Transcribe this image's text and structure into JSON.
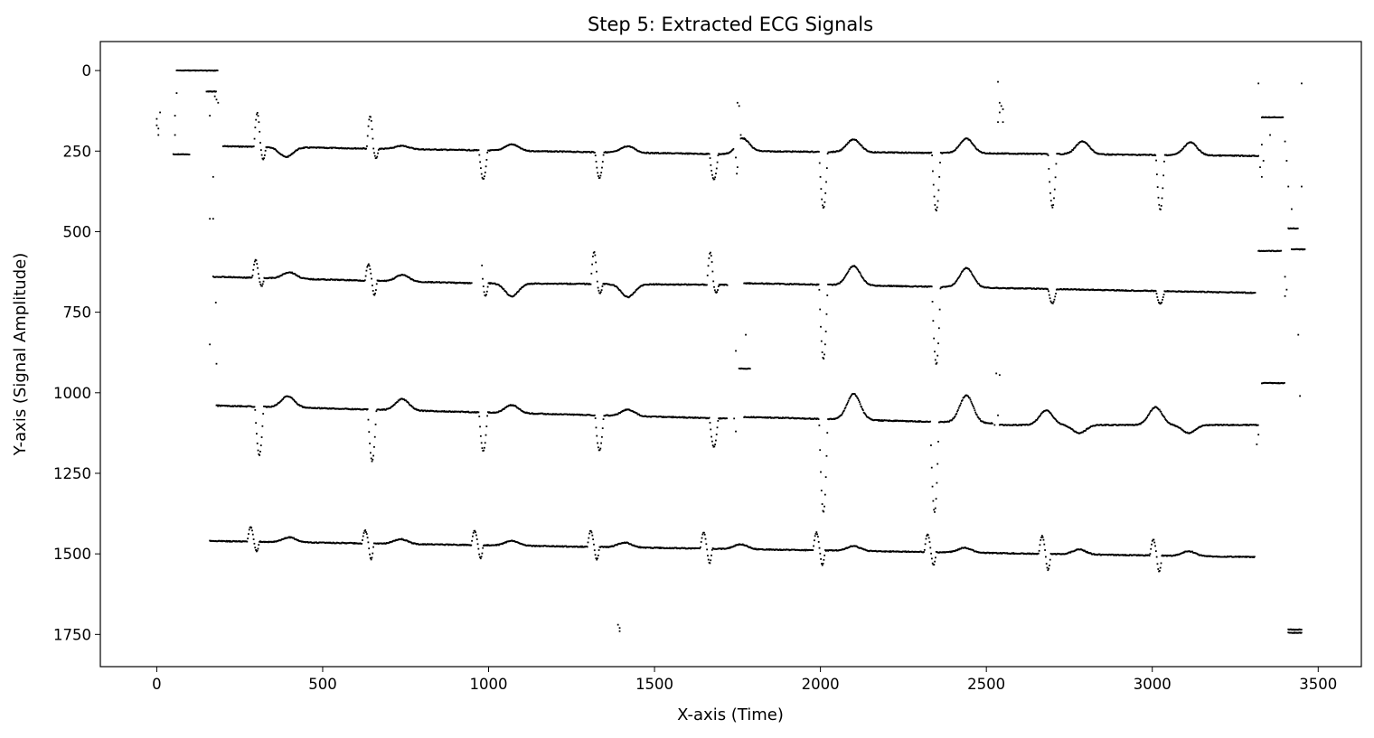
{
  "chart_data": {
    "type": "scatter",
    "title": "Step 5: Extracted ECG Signals",
    "xlabel": "X-axis (Time)",
    "ylabel": "Y-axis (Signal Amplitude)",
    "xlim": [
      -170,
      3630
    ],
    "ylim": [
      -90,
      1850
    ],
    "y_inverted": true,
    "grid": false,
    "marker_color": "#000000",
    "xticks": [
      0,
      500,
      1000,
      1500,
      2000,
      2500,
      3000,
      3500
    ],
    "yticks": [
      0,
      250,
      500,
      750,
      1000,
      1250,
      1500,
      1750
    ],
    "series": [
      {
        "baseline": 235,
        "x_start": 200,
        "x_end": 3320,
        "segments": [
          [
            200,
            1740,
            235,
            260
          ],
          [
            1760,
            3320,
            250,
            265
          ]
        ],
        "beats": [
          {
            "x": 305,
            "type": "qr",
            "up": -105,
            "down": 40
          },
          {
            "x": 390,
            "type": "t",
            "amp": 30
          },
          {
            "x": 645,
            "type": "qr",
            "up": -100,
            "down": 30
          },
          {
            "x": 740,
            "type": "t",
            "amp": -10
          },
          {
            "x": 975,
            "type": "qsr",
            "down": 90
          },
          {
            "x": 1070,
            "type": "t",
            "amp": -20
          },
          {
            "x": 1325,
            "type": "qsr",
            "down": 80
          },
          {
            "x": 1420,
            "type": "t",
            "amp": -20
          },
          {
            "x": 1670,
            "type": "qsr",
            "down": 80
          },
          {
            "x": 1765,
            "type": "t",
            "amp": -40
          },
          {
            "x": 2000,
            "type": "qsr",
            "down": 175
          },
          {
            "x": 2100,
            "type": "t",
            "amp": -40
          },
          {
            "x": 2340,
            "type": "qsr",
            "down": 180
          },
          {
            "x": 2440,
            "type": "t",
            "amp": -45
          },
          {
            "x": 2690,
            "type": "qsr",
            "down": 165
          },
          {
            "x": 2790,
            "type": "t",
            "amp": -40
          },
          {
            "x": 3015,
            "type": "qsr",
            "down": 170
          },
          {
            "x": 3115,
            "type": "t",
            "amp": -40
          }
        ]
      },
      {
        "baseline": 640,
        "x_start": 170,
        "x_end": 3310,
        "segments": [
          [
            170,
            950,
            640,
            660
          ],
          [
            980,
            1720,
            660,
            665
          ],
          [
            1770,
            3310,
            660,
            690
          ]
        ],
        "beats": [
          {
            "x": 300,
            "type": "qr",
            "up": -55,
            "down": 25
          },
          {
            "x": 400,
            "type": "t",
            "amp": -20
          },
          {
            "x": 640,
            "type": "qr",
            "up": -50,
            "down": 45
          },
          {
            "x": 740,
            "type": "t",
            "amp": -20
          },
          {
            "x": 975,
            "type": "qr",
            "up": -120,
            "down": 40
          },
          {
            "x": 1070,
            "type": "t",
            "amp": 40
          },
          {
            "x": 1320,
            "type": "qr",
            "up": -100,
            "down": 30
          },
          {
            "x": 1420,
            "type": "t",
            "amp": 40
          },
          {
            "x": 1670,
            "type": "qr",
            "up": -100,
            "down": 25
          },
          {
            "x": 2000,
            "type": "qsr",
            "down": 230
          },
          {
            "x": 2100,
            "type": "t",
            "amp": -60
          },
          {
            "x": 2340,
            "type": "qsr",
            "down": 240
          },
          {
            "x": 2440,
            "type": "t",
            "amp": -60
          },
          {
            "x": 2690,
            "type": "qsr",
            "down": 45
          },
          {
            "x": 3015,
            "type": "qsr",
            "down": 40
          }
        ]
      },
      {
        "baseline": 1040,
        "x_start": 180,
        "x_end": 3320,
        "segments": [
          [
            180,
            1720,
            1040,
            1080
          ],
          [
            1770,
            2520,
            1075,
            1095
          ],
          [
            2540,
            3320,
            1100,
            1100
          ]
        ],
        "beats": [
          {
            "x": 300,
            "type": "qsr",
            "down": 150
          },
          {
            "x": 395,
            "type": "t",
            "amp": -35
          },
          {
            "x": 640,
            "type": "qsr",
            "down": 160
          },
          {
            "x": 740,
            "type": "t",
            "amp": -35
          },
          {
            "x": 975,
            "type": "qsr",
            "down": 120
          },
          {
            "x": 1070,
            "type": "t",
            "amp": -25
          },
          {
            "x": 1325,
            "type": "qsr",
            "down": 110
          },
          {
            "x": 1420,
            "type": "t",
            "amp": -20
          },
          {
            "x": 1670,
            "type": "qsr",
            "down": 90
          },
          {
            "x": 2000,
            "type": "qsr",
            "down": 290
          },
          {
            "x": 2100,
            "type": "t",
            "amp": -80
          },
          {
            "x": 2335,
            "type": "qsr",
            "down": 280
          },
          {
            "x": 2440,
            "type": "t",
            "amp": -85
          },
          {
            "x": 2680,
            "type": "t",
            "amp": -45
          },
          {
            "x": 2780,
            "type": "t",
            "amp": 25
          },
          {
            "x": 3010,
            "type": "t",
            "amp": -55
          },
          {
            "x": 3110,
            "type": "t",
            "amp": 25
          }
        ]
      },
      {
        "baseline": 1460,
        "x_start": 160,
        "x_end": 3310,
        "segments": [
          [
            160,
            3310,
            1460,
            1510
          ]
        ],
        "beats": [
          {
            "x": 285,
            "type": "qr",
            "up": -45,
            "down": 30
          },
          {
            "x": 400,
            "type": "t",
            "amp": -15
          },
          {
            "x": 630,
            "type": "qr",
            "up": -40,
            "down": 50
          },
          {
            "x": 735,
            "type": "t",
            "amp": -15
          },
          {
            "x": 960,
            "type": "qr",
            "up": -45,
            "down": 40
          },
          {
            "x": 1070,
            "type": "t",
            "amp": -15
          },
          {
            "x": 1310,
            "type": "qr",
            "up": -50,
            "down": 40
          },
          {
            "x": 1410,
            "type": "t",
            "amp": -15
          },
          {
            "x": 1650,
            "type": "qr",
            "up": -50,
            "down": 45
          },
          {
            "x": 1760,
            "type": "t",
            "amp": -15
          },
          {
            "x": 1990,
            "type": "qr",
            "up": -55,
            "down": 45
          },
          {
            "x": 2100,
            "type": "t",
            "amp": -15
          },
          {
            "x": 2325,
            "type": "qr",
            "up": -55,
            "down": 40
          },
          {
            "x": 2435,
            "type": "t",
            "amp": -15
          },
          {
            "x": 2670,
            "type": "qr",
            "up": -55,
            "down": 50
          },
          {
            "x": 2780,
            "type": "t",
            "amp": -15
          },
          {
            "x": 3005,
            "type": "qr",
            "up": -50,
            "down": 50
          },
          {
            "x": 3110,
            "type": "t",
            "amp": -15
          }
        ]
      }
    ],
    "hsegments": [
      [
        60,
        185,
        0
      ],
      [
        50,
        100,
        260
      ],
      [
        150,
        180,
        65
      ],
      [
        3330,
        3395,
        145
      ],
      [
        3320,
        3390,
        560
      ],
      [
        3420,
        3460,
        555
      ],
      [
        3330,
        3400,
        970
      ],
      [
        1755,
        1790,
        925
      ],
      [
        3410,
        3450,
        1735
      ],
      [
        3410,
        3450,
        1745
      ],
      [
        3410,
        3440,
        490
      ]
    ],
    "scatter_points": [
      [
        0,
        150
      ],
      [
        0,
        170
      ],
      [
        5,
        200
      ],
      [
        10,
        130
      ],
      [
        5,
        180
      ],
      [
        60,
        70
      ],
      [
        55,
        140
      ],
      [
        55,
        200
      ],
      [
        160,
        460
      ],
      [
        170,
        460
      ],
      [
        170,
        330
      ],
      [
        160,
        850
      ],
      [
        180,
        910
      ],
      [
        178,
        720
      ],
      [
        160,
        140
      ],
      [
        180,
        90
      ],
      [
        185,
        100
      ],
      [
        175,
        80
      ],
      [
        1750,
        100
      ],
      [
        1755,
        110
      ],
      [
        1760,
        200
      ],
      [
        1770,
        210
      ],
      [
        1745,
        270
      ],
      [
        1750,
        300
      ],
      [
        1748,
        320
      ],
      [
        1745,
        870
      ],
      [
        1775,
        820
      ],
      [
        1740,
        1080
      ],
      [
        1745,
        1120
      ],
      [
        2535,
        35
      ],
      [
        2540,
        100
      ],
      [
        2545,
        110
      ],
      [
        2550,
        120
      ],
      [
        2540,
        130
      ],
      [
        2535,
        160
      ],
      [
        2550,
        160
      ],
      [
        2530,
        940
      ],
      [
        2540,
        945
      ],
      [
        2525,
        1100
      ],
      [
        2535,
        1070
      ],
      [
        1390,
        1720
      ],
      [
        1395,
        1730
      ],
      [
        1395,
        1740
      ],
      [
        3320,
        40
      ],
      [
        3330,
        230
      ],
      [
        3335,
        280
      ],
      [
        3325,
        300
      ],
      [
        3330,
        330
      ],
      [
        3320,
        1130
      ],
      [
        3315,
        1160
      ],
      [
        3355,
        200
      ],
      [
        3400,
        220
      ],
      [
        3405,
        280
      ],
      [
        3410,
        360
      ],
      [
        3400,
        640
      ],
      [
        3405,
        680
      ],
      [
        3400,
        700
      ],
      [
        3420,
        430
      ],
      [
        3440,
        820
      ],
      [
        3450,
        360
      ],
      [
        3450,
        40
      ],
      [
        3445,
        1010
      ]
    ]
  }
}
